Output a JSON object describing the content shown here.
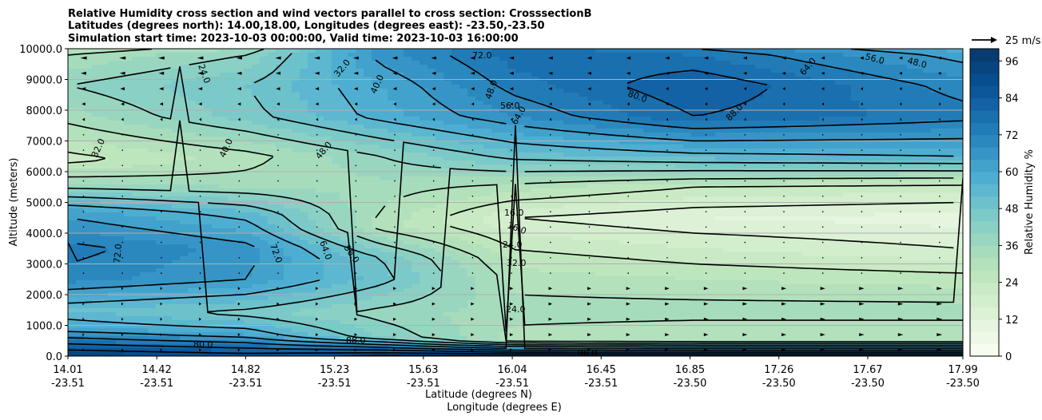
{
  "chart_data": {
    "type": "contour",
    "title_lines": [
      "Relative Humidity cross section and wind vectors parallel to cross section: CrosssectionB",
      "Latitudes (degrees north): 14.00,18.00, Longitudes (degrees east): -23.50,-23.50",
      "Simulation start time: 2023-10-03 00:00:00, Valid time: 2023-10-03 16:00:00"
    ],
    "ylabel": "Altitude (meters)",
    "xlabel_lines": [
      "Latitude (degrees N)",
      "Longitude (degrees E)"
    ],
    "ylim": [
      0,
      10000
    ],
    "yticks": [
      "0.0",
      "1000.0",
      "2000.0",
      "3000.0",
      "4000.0",
      "5000.0",
      "6000.0",
      "7000.0",
      "8000.0",
      "9000.0",
      "10000.0"
    ],
    "xticks": [
      {
        "lat": "14.01",
        "lon": "-23.51"
      },
      {
        "lat": "14.42",
        "lon": "-23.51"
      },
      {
        "lat": "14.82",
        "lon": "-23.51"
      },
      {
        "lat": "15.23",
        "lon": "-23.51"
      },
      {
        "lat": "15.63",
        "lon": "-23.51"
      },
      {
        "lat": "16.04",
        "lon": "-23.51"
      },
      {
        "lat": "16.45",
        "lon": "-23.51"
      },
      {
        "lat": "16.85",
        "lon": "-23.50"
      },
      {
        "lat": "17.26",
        "lon": "-23.50"
      },
      {
        "lat": "17.67",
        "lon": "-23.50"
      },
      {
        "lat": "17.99",
        "lon": "-23.50"
      }
    ],
    "colorbar": {
      "label": "Relative Humidity %",
      "ticks": [
        "0",
        "12",
        "24",
        "36",
        "48",
        "60",
        "72",
        "84",
        "96"
      ],
      "levels": [
        0,
        4,
        8,
        12,
        16,
        20,
        24,
        28,
        32,
        36,
        40,
        44,
        48,
        52,
        56,
        60,
        64,
        68,
        72,
        76,
        80,
        84,
        88,
        92,
        96,
        100
      ],
      "colors": [
        "#f7fcf0",
        "#eef8e7",
        "#e5f5df",
        "#dcf1d6",
        "#d3eecd",
        "#c9eac4",
        "#bee6bc",
        "#b2e1bc",
        "#a6dcbc",
        "#98d6c0",
        "#8ad0c4",
        "#7bc9c8",
        "#6cc1cb",
        "#5db7d0",
        "#4eaed1",
        "#42a2cc",
        "#3695c6",
        "#2b88bf",
        "#217bb7",
        "#1a6fae",
        "#1262a5",
        "#0c5799",
        "#084d8c",
        "#08447e",
        "#083b70"
      ]
    },
    "vector_key": "25 m/s",
    "contour_labels": [
      "24.0",
      "32.0",
      "40.0",
      "48.0",
      "56.0",
      "64.0",
      "72.0",
      "80.0",
      "88.0",
      "96.0",
      "16.0",
      "16.0",
      "24.0",
      "32.0",
      "24.0",
      "32.0",
      "40.0",
      "48.0",
      "56.0",
      "64.0",
      "72.0",
      "72.0",
      "64.0",
      "56.0",
      "48.0",
      "88.0",
      "80.0",
      "96.0"
    ],
    "rh_profiles": [
      {
        "x": 0.0,
        "levels": [
          [
            0,
            96
          ],
          [
            900,
            60
          ],
          [
            1500,
            52
          ],
          [
            2500,
            70
          ],
          [
            3500,
            74
          ],
          [
            4700,
            62
          ],
          [
            5600,
            36
          ],
          [
            6400,
            22
          ],
          [
            7800,
            34
          ],
          [
            8800,
            40
          ],
          [
            9800,
            32
          ],
          [
            10000,
            28
          ]
        ]
      },
      {
        "x": 0.2,
        "levels": [
          [
            0,
            92
          ],
          [
            700,
            60
          ],
          [
            1400,
            46
          ],
          [
            2500,
            64
          ],
          [
            3500,
            66
          ],
          [
            4600,
            54
          ],
          [
            5600,
            34
          ],
          [
            6500,
            30
          ],
          [
            7800,
            46
          ],
          [
            8800,
            48
          ],
          [
            9800,
            40
          ],
          [
            10000,
            36
          ]
        ]
      },
      {
        "x": 0.35,
        "levels": [
          [
            0,
            98
          ],
          [
            600,
            44
          ],
          [
            1400,
            38
          ],
          [
            2500,
            50
          ],
          [
            3200,
            48
          ],
          [
            4200,
            30
          ],
          [
            5400,
            34
          ],
          [
            6500,
            40
          ],
          [
            7800,
            58
          ],
          [
            8800,
            60
          ],
          [
            9800,
            66
          ],
          [
            10000,
            66
          ]
        ]
      },
      {
        "x": 0.5,
        "levels": [
          [
            0,
            98
          ],
          [
            500,
            30
          ],
          [
            1500,
            34
          ],
          [
            2500,
            30
          ],
          [
            3200,
            26
          ],
          [
            4500,
            16
          ],
          [
            5500,
            30
          ],
          [
            6500,
            50
          ],
          [
            7800,
            68
          ],
          [
            8800,
            74
          ],
          [
            9800,
            78
          ],
          [
            10000,
            78
          ]
        ]
      },
      {
        "x": 0.7,
        "levels": [
          [
            0,
            98
          ],
          [
            500,
            28
          ],
          [
            1500,
            34
          ],
          [
            2500,
            28
          ],
          [
            3500,
            20
          ],
          [
            4500,
            12
          ],
          [
            5500,
            24
          ],
          [
            6500,
            54
          ],
          [
            7800,
            80
          ],
          [
            8800,
            84
          ],
          [
            9800,
            76
          ],
          [
            10000,
            72
          ]
        ]
      },
      {
        "x": 1.0,
        "levels": [
          [
            0,
            98
          ],
          [
            500,
            28
          ],
          [
            1500,
            34
          ],
          [
            2500,
            26
          ],
          [
            3500,
            16
          ],
          [
            4500,
            10
          ],
          [
            5500,
            22
          ],
          [
            6500,
            56
          ],
          [
            7800,
            74
          ],
          [
            8800,
            70
          ],
          [
            9800,
            62
          ],
          [
            10000,
            58
          ]
        ]
      }
    ],
    "wind_vectors": "rightward vectors below ~2500 m strengthening eastward; leftward vectors above ~7500 m; near-zero mid levels"
  }
}
